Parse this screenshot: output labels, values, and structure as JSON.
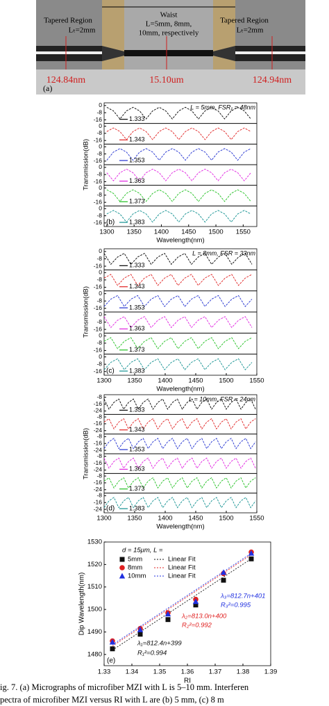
{
  "figure_a": {
    "left_title": "Tapered Region",
    "left_length": "Lₜ=2mm",
    "waist_title": "Waist",
    "waist_length_1": "L=5mm, 8mm,",
    "waist_length_2": "10mm, respectively",
    "right_title": "Tapered Region",
    "right_length": "Lₜ=2mm",
    "left_diameter": "124.84nm",
    "waist_diameter": "15.10um",
    "right_diameter": "124.94nm",
    "panel_label": "(a)"
  },
  "chart_data": [
    {
      "type": "line",
      "panel_label": "(b)",
      "annotation": "L = 5mm, FSR₁ = 48nm",
      "xlabel": "Wavelength(nm)",
      "ylabel": "Transmission(dB)",
      "xlim": [
        1295,
        1575
      ],
      "xticks": [
        1300,
        1350,
        1400,
        1450,
        1500,
        1550
      ],
      "ylim": [
        -20,
        3
      ],
      "yticks": [
        0,
        -8,
        -16
      ],
      "x": [
        1300,
        1312,
        1324,
        1336,
        1348,
        1360,
        1372,
        1384,
        1396,
        1408,
        1420,
        1432,
        1444,
        1456,
        1468,
        1480,
        1492,
        1504,
        1516,
        1528,
        1540,
        1552,
        1564
      ],
      "series": [
        {
          "name": "1.333",
          "color": "#000000",
          "values": [
            -2,
            -6,
            -15,
            -6,
            -2,
            -6,
            -15,
            -6,
            -2,
            -6,
            -15,
            -6,
            -2,
            -6,
            -15,
            -6,
            -2,
            -6,
            -15,
            -6,
            -2,
            -6,
            -15
          ]
        },
        {
          "name": "1.343",
          "color": "#e02020",
          "values": [
            -6,
            -2,
            -6,
            -15,
            -6,
            -2,
            -6,
            -15,
            -6,
            -2,
            -6,
            -15,
            -6,
            -2,
            -6,
            -15,
            -6,
            -2,
            -6,
            -15,
            -6,
            -2,
            -6
          ]
        },
        {
          "name": "1.353",
          "color": "#2030d0",
          "values": [
            -15,
            -6,
            -2,
            -6,
            -15,
            -6,
            -2,
            -6,
            -15,
            -6,
            -2,
            -6,
            -15,
            -6,
            -2,
            -6,
            -15,
            -6,
            -2,
            -6,
            -15,
            -6,
            -2
          ]
        },
        {
          "name": "1.363",
          "color": "#e020e0",
          "values": [
            -6,
            -15,
            -6,
            -2,
            -6,
            -15,
            -6,
            -2,
            -6,
            -15,
            -6,
            -2,
            -6,
            -15,
            -6,
            -2,
            -6,
            -15,
            -6,
            -2,
            -6,
            -15,
            -6
          ]
        },
        {
          "name": "1.373",
          "color": "#20c020",
          "values": [
            -2,
            -6,
            -15,
            -6,
            -2,
            -6,
            -15,
            -6,
            -2,
            -6,
            -15,
            -6,
            -2,
            -6,
            -15,
            -6,
            -2,
            -6,
            -15,
            -6,
            -2,
            -6,
            -15
          ]
        },
        {
          "name": "1.383",
          "color": "#109090",
          "values": [
            -6,
            -2,
            -6,
            -15,
            -6,
            -2,
            -6,
            -15,
            -6,
            -2,
            -6,
            -15,
            -6,
            -2,
            -6,
            -15,
            -6,
            -2,
            -6,
            -15,
            -6,
            -2,
            -6
          ]
        }
      ]
    },
    {
      "type": "line",
      "panel_label": "(c)",
      "annotation": "L = 8mm, FSR = 33nm",
      "xlabel": "Wavelength(nm)",
      "ylabel": "Transmission(dB)",
      "xlim": [
        1300,
        1550
      ],
      "xticks": [
        1300,
        1350,
        1400,
        1450,
        1500,
        1550
      ],
      "ylim": [
        -20,
        3
      ],
      "yticks": [
        0,
        -8,
        -16
      ],
      "x": [
        1300,
        1311,
        1322,
        1333,
        1344,
        1355,
        1366,
        1377,
        1388,
        1399,
        1410,
        1421,
        1432,
        1443,
        1454,
        1465,
        1476,
        1487,
        1498,
        1509,
        1520,
        1531,
        1542
      ],
      "series": [
        {
          "name": "1.333",
          "color": "#000000",
          "values": [
            -2,
            -14,
            -6,
            -2,
            -14,
            -6,
            -2,
            -14,
            -6,
            -2,
            -14,
            -6,
            -2,
            -14,
            -6,
            -2,
            -14,
            -6,
            -2,
            -14,
            -6,
            -2,
            -14
          ]
        },
        {
          "name": "1.343",
          "color": "#e02020",
          "values": [
            -6,
            -2,
            -14,
            -6,
            -2,
            -14,
            -6,
            -2,
            -14,
            -6,
            -2,
            -14,
            -6,
            -2,
            -14,
            -6,
            -2,
            -14,
            -6,
            -2,
            -14,
            -6,
            -2
          ]
        },
        {
          "name": "1.353",
          "color": "#2030d0",
          "values": [
            -14,
            -6,
            -2,
            -14,
            -6,
            -2,
            -14,
            -6,
            -2,
            -14,
            -6,
            -2,
            -14,
            -6,
            -2,
            -14,
            -6,
            -2,
            -14,
            -6,
            -2,
            -14,
            -6
          ]
        },
        {
          "name": "1.363",
          "color": "#e020e0",
          "values": [
            -2,
            -14,
            -6,
            -2,
            -14,
            -6,
            -2,
            -14,
            -6,
            -2,
            -14,
            -6,
            -2,
            -14,
            -6,
            -2,
            -14,
            -6,
            -2,
            -14,
            -6,
            -2,
            -14
          ]
        },
        {
          "name": "1.373",
          "color": "#20c020",
          "values": [
            -6,
            -2,
            -14,
            -6,
            -2,
            -14,
            -6,
            -2,
            -14,
            -6,
            -2,
            -14,
            -6,
            -2,
            -14,
            -6,
            -2,
            -14,
            -6,
            -2,
            -14,
            -6,
            -2
          ]
        },
        {
          "name": "1.383",
          "color": "#109090",
          "values": [
            -14,
            -6,
            -2,
            -14,
            -6,
            -2,
            -14,
            -6,
            -2,
            -14,
            -6,
            -2,
            -14,
            -6,
            -2,
            -14,
            -6,
            -2,
            -14,
            -6,
            -2,
            -14,
            -6
          ]
        }
      ]
    },
    {
      "type": "line",
      "panel_label": "(d)",
      "annotation": "L = 10mm, FSR = 24nm",
      "xlabel": "Wavelength(nm)",
      "ylabel": "Transmission(dB)",
      "xlim": [
        1300,
        1550
      ],
      "xticks": [
        1300,
        1350,
        1400,
        1450,
        1500,
        1550
      ],
      "ylim": [
        -28,
        -5
      ],
      "yticks": [
        -8,
        -16,
        -24
      ],
      "x": [
        1300,
        1308,
        1316,
        1324,
        1332,
        1340,
        1348,
        1356,
        1364,
        1372,
        1380,
        1388,
        1396,
        1404,
        1412,
        1420,
        1428,
        1436,
        1444,
        1452,
        1460,
        1468,
        1476,
        1484,
        1492,
        1500,
        1508,
        1516,
        1524,
        1532,
        1540,
        1548
      ],
      "series": [
        {
          "name": "1.333",
          "color": "#000000",
          "values": [
            -10,
            -22,
            -14,
            -10,
            -22,
            -14,
            -10,
            -22,
            -14,
            -10,
            -22,
            -14,
            -10,
            -22,
            -14,
            -10,
            -22,
            -14,
            -10,
            -22,
            -14,
            -10,
            -22,
            -14,
            -10,
            -22,
            -14,
            -10,
            -22,
            -14,
            -10,
            -22
          ]
        },
        {
          "name": "1.343",
          "color": "#e02020",
          "values": [
            -14,
            -10,
            -22,
            -14,
            -10,
            -22,
            -14,
            -10,
            -22,
            -14,
            -10,
            -22,
            -14,
            -10,
            -22,
            -14,
            -10,
            -22,
            -14,
            -10,
            -22,
            -14,
            -10,
            -22,
            -14,
            -10,
            -22,
            -14,
            -10,
            -22,
            -14,
            -10
          ]
        },
        {
          "name": "1.353",
          "color": "#2030d0",
          "values": [
            -22,
            -14,
            -10,
            -22,
            -14,
            -10,
            -22,
            -14,
            -10,
            -22,
            -14,
            -10,
            -22,
            -14,
            -10,
            -22,
            -14,
            -10,
            -22,
            -14,
            -10,
            -22,
            -14,
            -10,
            -22,
            -14,
            -10,
            -22,
            -14,
            -10,
            -22,
            -14
          ]
        },
        {
          "name": "1.363",
          "color": "#e020e0",
          "values": [
            -10,
            -22,
            -14,
            -10,
            -22,
            -14,
            -10,
            -22,
            -14,
            -10,
            -22,
            -14,
            -10,
            -22,
            -14,
            -10,
            -22,
            -14,
            -10,
            -22,
            -14,
            -10,
            -22,
            -14,
            -10,
            -22,
            -14,
            -10,
            -22,
            -14,
            -10,
            -22
          ]
        },
        {
          "name": "1.373",
          "color": "#20c020",
          "values": [
            -14,
            -10,
            -22,
            -14,
            -10,
            -22,
            -14,
            -10,
            -22,
            -14,
            -10,
            -22,
            -14,
            -10,
            -22,
            -14,
            -10,
            -22,
            -14,
            -10,
            -22,
            -14,
            -10,
            -22,
            -14,
            -10,
            -22,
            -14,
            -10,
            -22,
            -14,
            -10
          ]
        },
        {
          "name": "1.383",
          "color": "#109090",
          "values": [
            -22,
            -14,
            -10,
            -22,
            -14,
            -10,
            -22,
            -14,
            -10,
            -22,
            -14,
            -10,
            -22,
            -14,
            -10,
            -22,
            -14,
            -10,
            -22,
            -14,
            -10,
            -22,
            -14,
            -10,
            -22,
            -14,
            -10,
            -22,
            -14,
            -10,
            -22,
            -14
          ]
        }
      ]
    },
    {
      "type": "scatter",
      "panel_label": "(e)",
      "legend_title": "d = 15μm, L =",
      "xlabel": "RI",
      "ylabel": "Dip Wavelength(nm)",
      "xlim": [
        1.33,
        1.39
      ],
      "xticks": [
        1.33,
        1.34,
        1.35,
        1.36,
        1.37,
        1.38,
        1.39
      ],
      "ylim": [
        1475,
        1530
      ],
      "yticks": [
        1480,
        1490,
        1500,
        1510,
        1520,
        1530
      ],
      "x": [
        1.333,
        1.343,
        1.353,
        1.363,
        1.373,
        1.383
      ],
      "series": [
        {
          "name": "5mm",
          "fit_name": "Linear Fit",
          "marker": "square",
          "color": "#111111",
          "values": [
            1482.5,
            1489,
            1495.5,
            1502,
            1513,
            1522.5
          ],
          "fit": {
            "slope": 812.4,
            "intercept": 399
          }
        },
        {
          "name": "8mm",
          "fit_name": "Linear Fit",
          "marker": "circle",
          "color": "#e02020",
          "values": [
            1486,
            1491.5,
            1498.5,
            1504.5,
            1516,
            1525.5
          ],
          "fit": {
            "slope": 813.0,
            "intercept": 400
          }
        },
        {
          "name": "10mm",
          "fit_name": "Linear Fit",
          "marker": "triangle",
          "color": "#2030e0",
          "values": [
            1485.5,
            1491,
            1498,
            1503.5,
            1516.5,
            1525
          ],
          "fit": {
            "slope": 812.7,
            "intercept": 401
          }
        }
      ],
      "annotations": [
        {
          "text": "λ₃=812.7n+401",
          "color": "#2030e0"
        },
        {
          "text": "R₃²=0.995",
          "color": "#2030e0"
        },
        {
          "text": "λ₂=813.0n+400",
          "color": "#e02020"
        },
        {
          "text": "R₂²=0.992",
          "color": "#e02020"
        },
        {
          "text": "λ₁=812.4n+399",
          "color": "#111111"
        },
        {
          "text": "R₁²=0.994",
          "color": "#111111"
        }
      ]
    }
  ],
  "caption": [
    "ig. 7.   (a) Micrographs of microfiber MZI with L is 5–10 mm. Interferen",
    "pectra of microfiber MZI versus RI with L are (b) 5 mm, (c) 8 m"
  ]
}
